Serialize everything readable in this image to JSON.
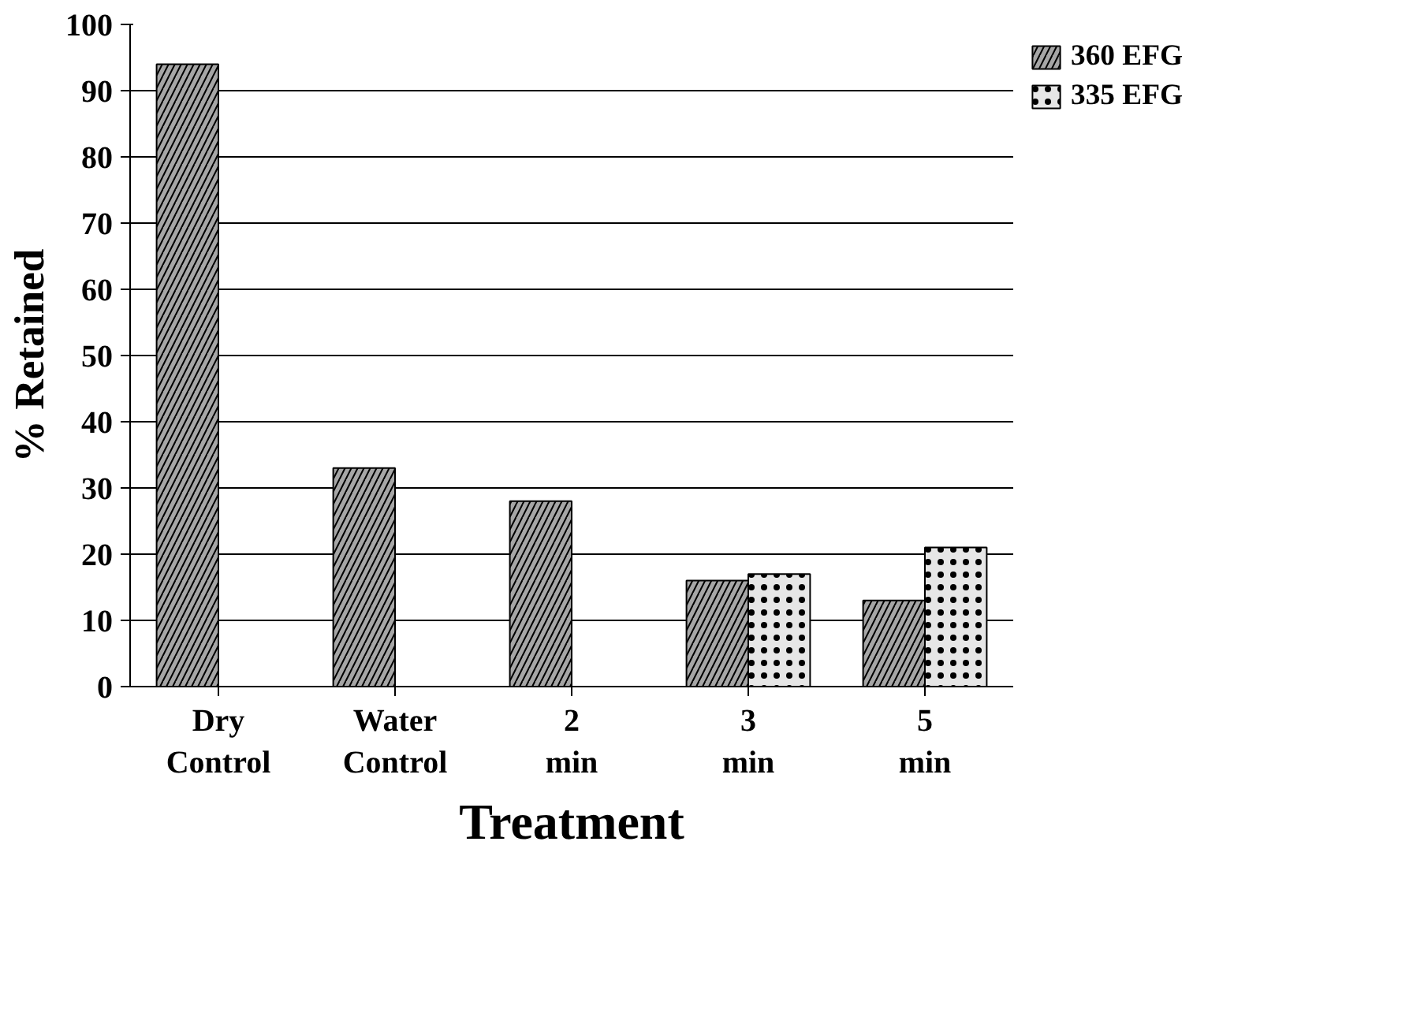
{
  "chart_data": {
    "type": "bar",
    "xlabel": "Treatment",
    "ylabel": "% Retained",
    "categories": [
      "Dry Control",
      "Water Control",
      "2 min",
      "3 min",
      "5 min"
    ],
    "series": [
      {
        "name": "360 EFG",
        "color": "#a6a6a6",
        "values": [
          94,
          33,
          28,
          16,
          13
        ]
      },
      {
        "name": "335 EFG",
        "color": "#e6e6e6",
        "values": [
          null,
          null,
          null,
          17,
          21
        ]
      }
    ],
    "ylim": [
      0,
      100
    ],
    "yticks": [
      0,
      10,
      20,
      30,
      40,
      50,
      60,
      70,
      80,
      90,
      100
    ],
    "grid": "y",
    "legend": "right"
  }
}
